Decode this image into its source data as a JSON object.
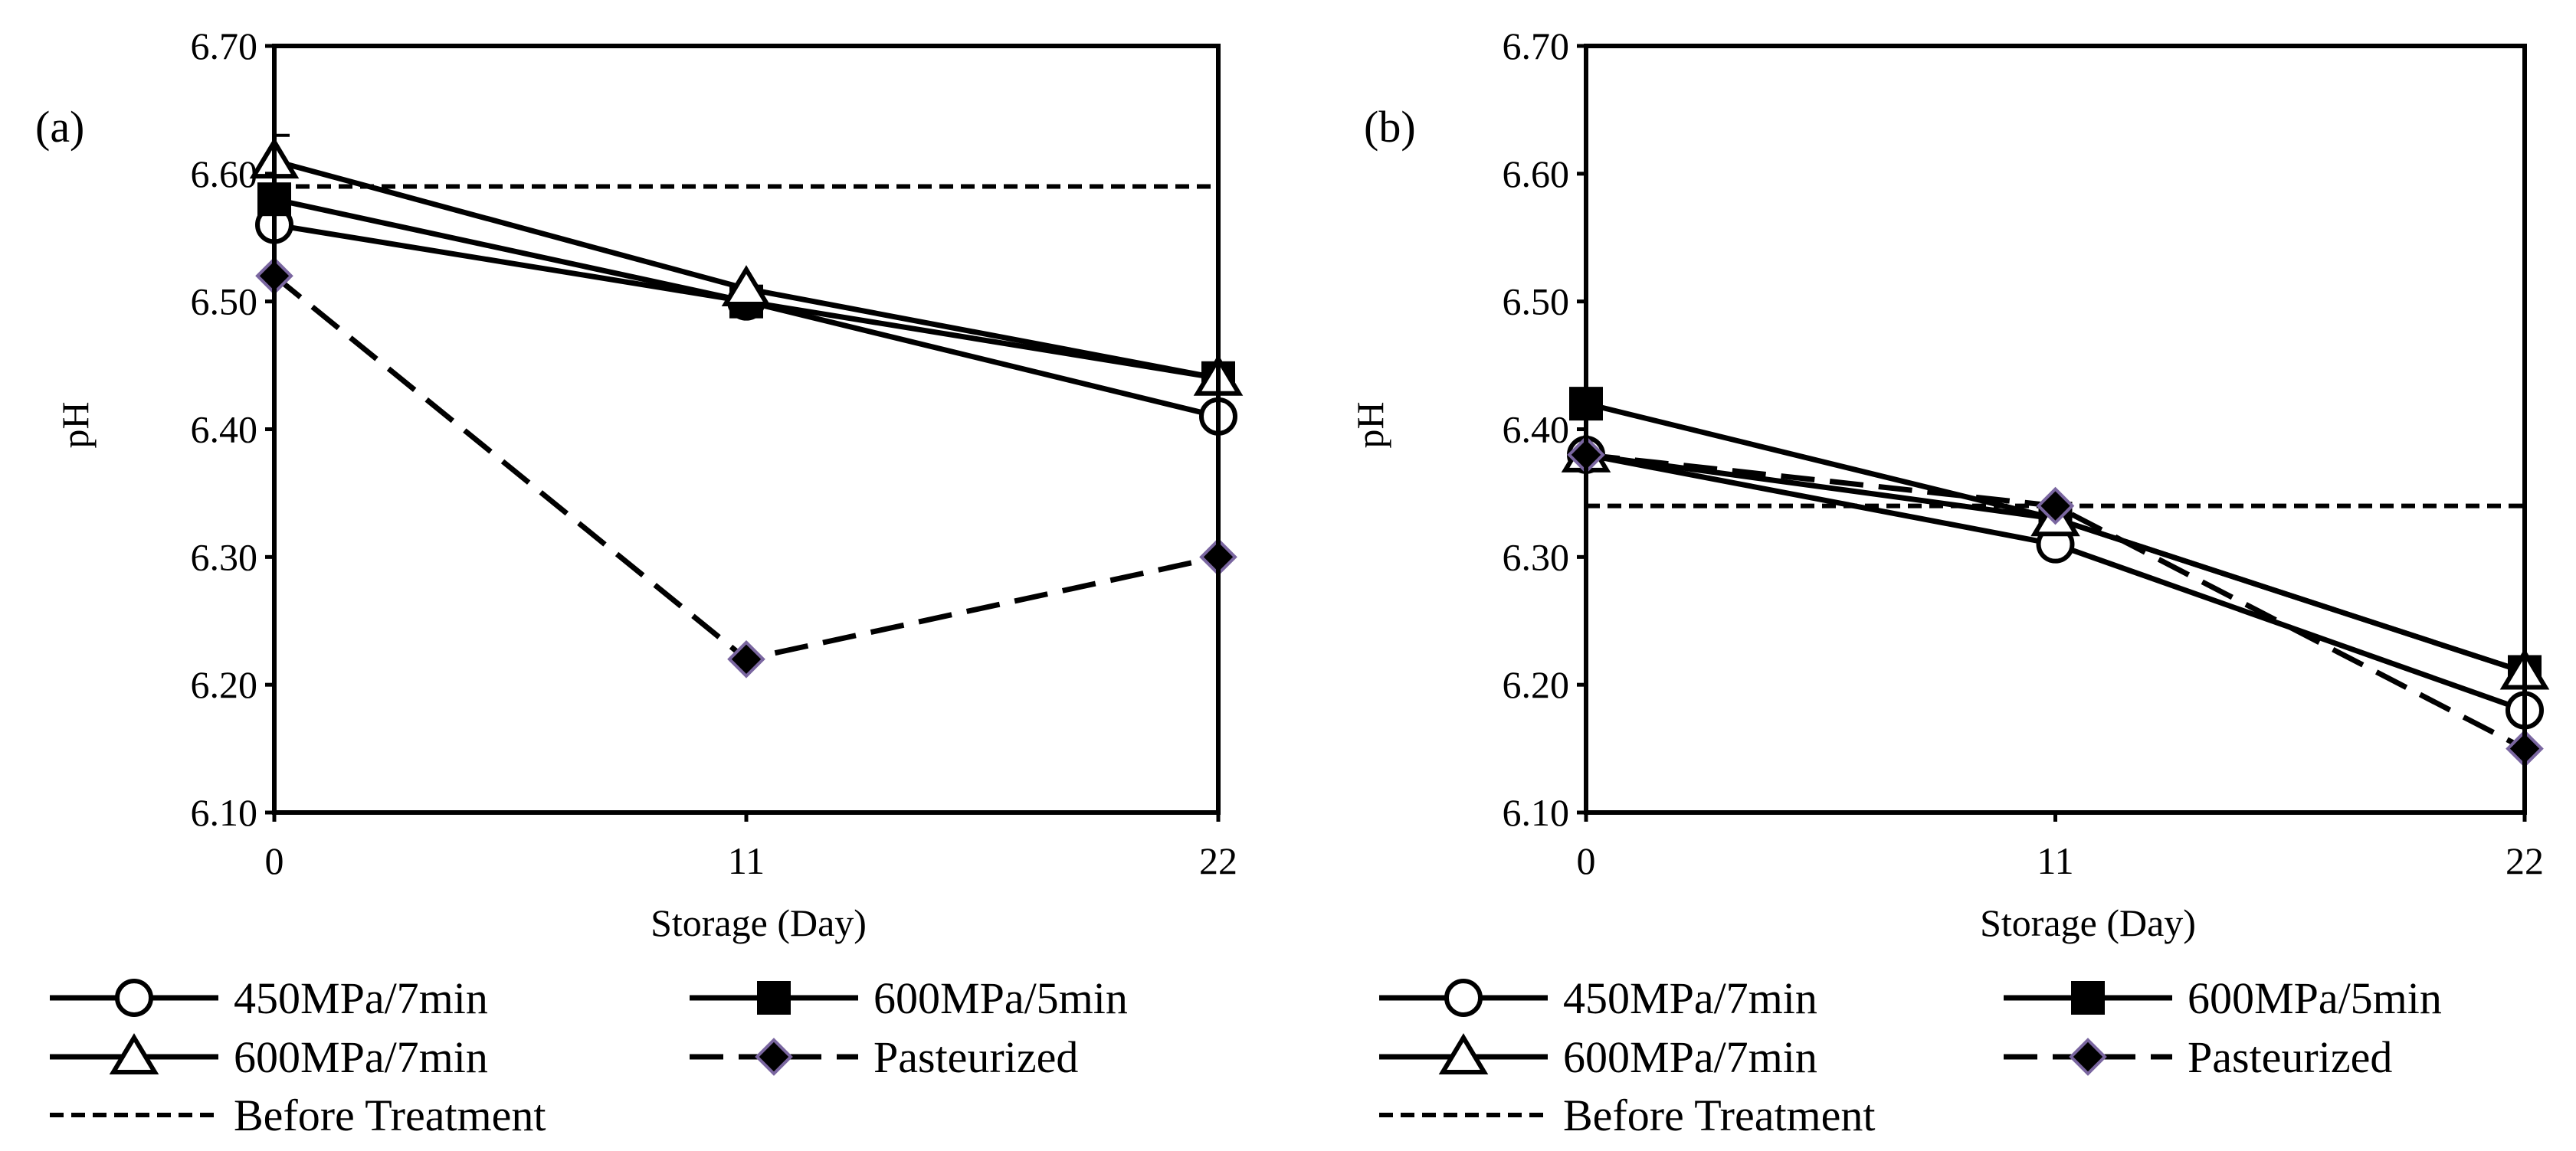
{
  "chart_data": [
    {
      "type": "line",
      "panel_label": "(a)",
      "xlabel": "Storage (Day)",
      "ylabel": "pH",
      "x": [
        0,
        11,
        22
      ],
      "xticks": [
        "0",
        "11",
        "22"
      ],
      "ylim": [
        6.1,
        6.7
      ],
      "yticks": [
        "6.10",
        "6.20",
        "6.30",
        "6.40",
        "6.50",
        "6.60",
        "6.70"
      ],
      "grid": false,
      "series": [
        {
          "name": "450MPa/7min",
          "marker": "circle-open",
          "line": "solid",
          "values": [
            6.56,
            6.5,
            6.41
          ]
        },
        {
          "name": "600MPa/5min",
          "marker": "square-filled",
          "line": "solid",
          "values": [
            6.58,
            6.5,
            6.44
          ]
        },
        {
          "name": "600MPa/7min",
          "marker": "triangle-open",
          "line": "solid",
          "values": [
            6.61,
            6.51,
            6.44
          ]
        },
        {
          "name": "Pasteurized",
          "marker": "diamond-filled",
          "line": "long-dash",
          "values": [
            6.52,
            6.22,
            6.3
          ]
        }
      ],
      "reference_line": {
        "name": "Before Treatment",
        "value": 6.59
      },
      "error_bars": [
        {
          "series": "600MPa/7min",
          "x": 0,
          "upper": 6.63
        }
      ]
    },
    {
      "type": "line",
      "panel_label": "(b)",
      "xlabel": "Storage (Day)",
      "ylabel": "pH",
      "x": [
        0,
        11,
        22
      ],
      "xticks": [
        "0",
        "11",
        "22"
      ],
      "ylim": [
        6.1,
        6.7
      ],
      "yticks": [
        "6.10",
        "6.20",
        "6.30",
        "6.40",
        "6.50",
        "6.60",
        "6.70"
      ],
      "grid": false,
      "series": [
        {
          "name": "450MPa/7min",
          "marker": "circle-open",
          "line": "solid",
          "values": [
            6.38,
            6.31,
            6.18
          ]
        },
        {
          "name": "600MPa/5min",
          "marker": "square-filled",
          "line": "solid",
          "values": [
            6.42,
            6.33,
            6.21
          ]
        },
        {
          "name": "600MPa/7min",
          "marker": "triangle-open",
          "line": "solid",
          "values": [
            6.38,
            6.33,
            6.21
          ]
        },
        {
          "name": "Pasteurized",
          "marker": "diamond-filled",
          "line": "long-dash",
          "values": [
            6.38,
            6.34,
            6.15
          ]
        }
      ],
      "reference_line": {
        "name": "Before Treatment",
        "value": 6.34
      },
      "error_bars": []
    }
  ],
  "colors": {
    "axis": "#000000",
    "marker_fill_dark": "#000000",
    "marker_fill_open": "#ffffff",
    "diamond_edge": "#7a66a0"
  }
}
